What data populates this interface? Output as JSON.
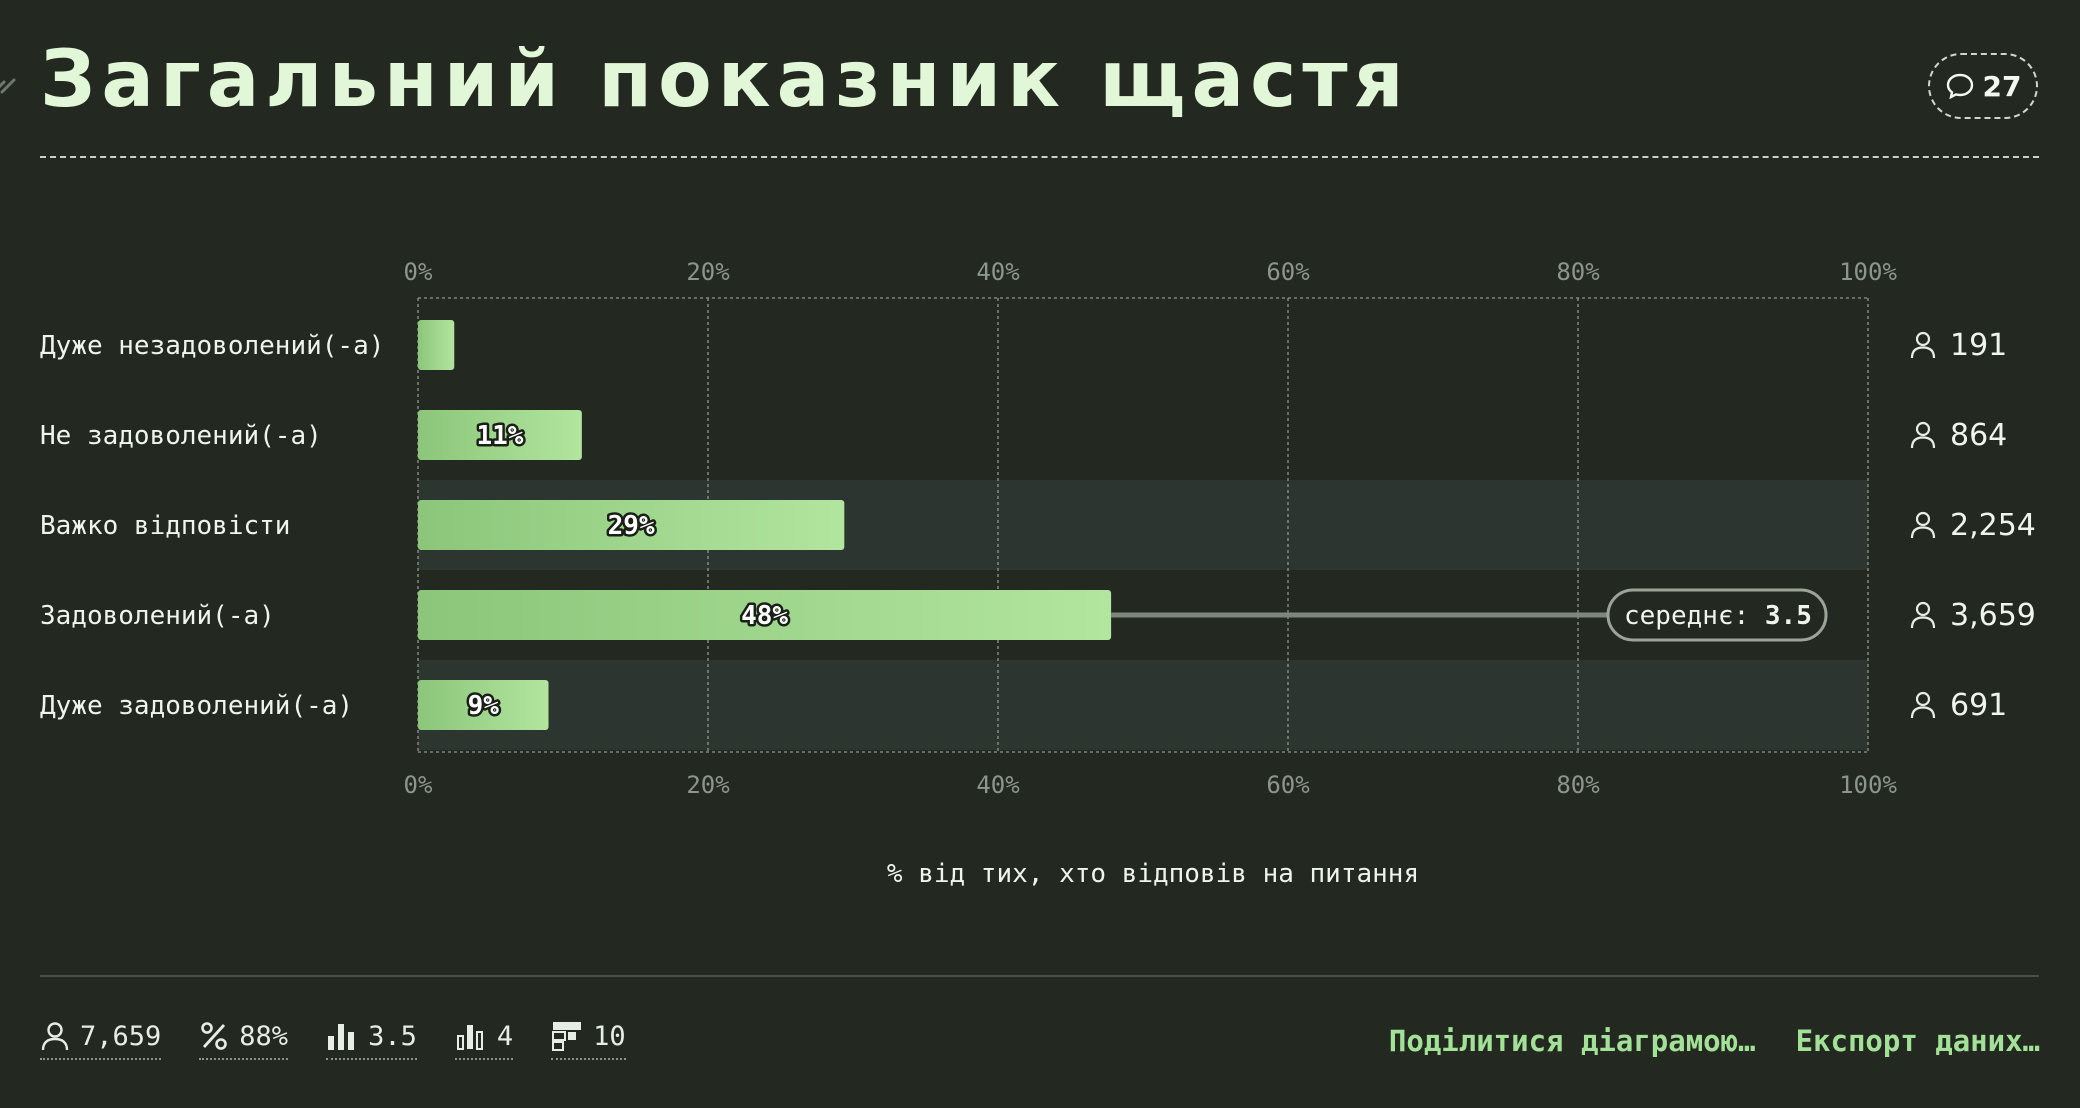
{
  "header": {
    "title": "Загальний показник щастя",
    "comments_count": "27"
  },
  "chart_data": {
    "type": "bar",
    "orientation": "horizontal",
    "categories": [
      "Дуже незадоволений(-а)",
      "Не задоволений(-а)",
      "Важко відповісти",
      "Задоволений(-а)",
      "Дуже задоволений(-а)"
    ],
    "values": [
      2.5,
      11.3,
      29.4,
      47.8,
      9.0
    ],
    "value_labels": [
      "",
      "11%",
      "29%",
      "48%",
      "9%"
    ],
    "counts": [
      "191",
      "864",
      "2,254",
      "3,659",
      "691"
    ],
    "xlim": [
      0,
      100
    ],
    "ticks": [
      "0%",
      "20%",
      "40%",
      "60%",
      "80%",
      "100%"
    ],
    "xlabel": "% від тих, хто відповів на питання",
    "mean": {
      "label": "середнє:",
      "value": "3.5"
    },
    "grid": true,
    "colors": {
      "bar_start": "#8bc67a",
      "bar_end": "#b2e59e",
      "highlight_row": "#2d3530"
    }
  },
  "footer": {
    "stats": [
      {
        "icon": "person-icon",
        "value": "7,659"
      },
      {
        "icon": "percent-icon",
        "value": "88%"
      },
      {
        "icon": "bar-chart-icon",
        "value": "3.5"
      },
      {
        "icon": "bar-chart-outline-icon",
        "value": "4"
      },
      {
        "icon": "table-icon",
        "value": "10"
      }
    ],
    "share_label": "Поділитися діаграмою…",
    "export_label": "Експорт даних…"
  }
}
